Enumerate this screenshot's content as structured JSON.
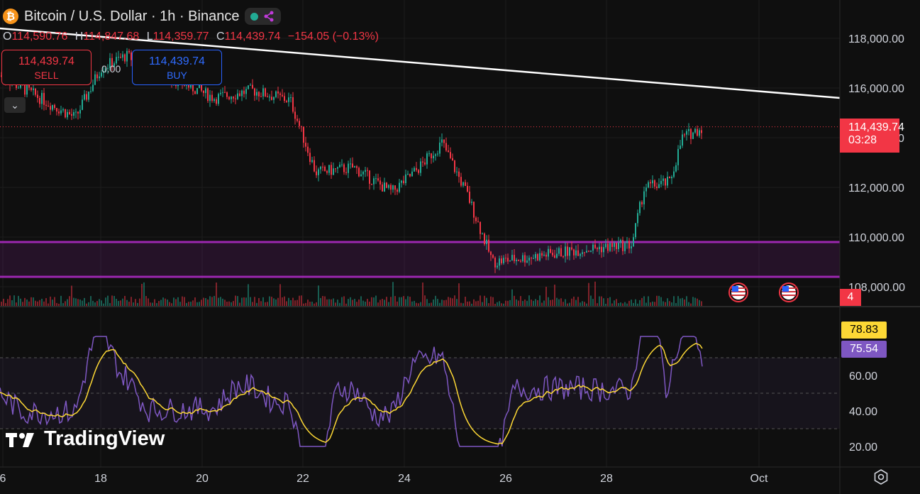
{
  "header": {
    "coin_icon": "bitcoin-icon",
    "coin_symbol": "₿",
    "title": "Bitcoin / U.S. Dollar · 1h · Binance",
    "status_color": "#22ab94"
  },
  "ohlc": {
    "o_label": "O",
    "o": "114,590.76",
    "h_label": "H",
    "h": "114,847.68",
    "l_label": "L",
    "l": "114,359.77",
    "c_label": "C",
    "c": "114,439.74",
    "change": "−154.05 (−0.13%)"
  },
  "trade": {
    "sell_price": "114,439.74",
    "sell_label": "SELL",
    "buy_price": "114,439.74",
    "buy_label": "BUY",
    "spread": "0.00"
  },
  "collapse_icon": "chevron-down-icon",
  "price_axis": [
    "118,000.00",
    "116,000.00",
    "114,000.00",
    "112,000.00",
    "110,000.00",
    "108,000.00"
  ],
  "last_price": {
    "price": "114,439.74",
    "countdown": "03:28"
  },
  "volume_tag": "4",
  "rsi_axis": [
    "60.00",
    "40.00",
    "20.00"
  ],
  "rsi_tags": {
    "rsi_ma": "78.83",
    "rsi": "75.54"
  },
  "time_axis": [
    "6",
    "18",
    "20",
    "22",
    "24",
    "26",
    "28",
    "Oct"
  ],
  "events": [
    "us-flag-icon",
    "us-flag-icon"
  ],
  "brand": "TradingView",
  "settings_icon": "gear-icon",
  "colors": {
    "up": "#22ab94",
    "down": "#f23645",
    "zone": "#9c27b0",
    "rsi": "#7e57c2",
    "rsi_ma": "#fdd835"
  },
  "chart_data": {
    "type": "candlestick",
    "interval": "1h",
    "x_ticks": [
      "6",
      "18",
      "20",
      "22",
      "24",
      "26",
      "28",
      "Oct"
    ],
    "ylim": [
      107500,
      118500
    ],
    "close_path": [
      {
        "t": "Sep 17 12:00",
        "close": 114800
      },
      {
        "t": "Sep 18 00:00",
        "close": 116800
      },
      {
        "t": "Sep 18 12:00",
        "close": 117300
      },
      {
        "t": "Sep 19 12:00",
        "close": 116300
      },
      {
        "t": "Sep 20 06:00",
        "close": 115600
      },
      {
        "t": "Sep 21 00:00",
        "close": 115900
      },
      {
        "t": "Sep 21 18:00",
        "close": 115500
      },
      {
        "t": "Sep 22 06:00",
        "close": 112600
      },
      {
        "t": "Sep 23 00:00",
        "close": 112800
      },
      {
        "t": "Sep 23 18:00",
        "close": 111800
      },
      {
        "t": "Sep 24 06:00",
        "close": 112700
      },
      {
        "t": "Sep 24 18:00",
        "close": 113800
      },
      {
        "t": "Sep 25 06:00",
        "close": 111700
      },
      {
        "t": "Sep 25 18:00",
        "close": 109000
      },
      {
        "t": "Sep 26 12:00",
        "close": 109200
      },
      {
        "t": "Sep 27 12:00",
        "close": 109500
      },
      {
        "t": "Sep 28 12:00",
        "close": 109700
      },
      {
        "t": "Sep 28 18:00",
        "close": 112000
      },
      {
        "t": "Sep 29 06:00",
        "close": 112200
      },
      {
        "t": "Sep 29 12:00",
        "close": 114000
      },
      {
        "t": "Sep 29 22:00",
        "close": 114440
      }
    ],
    "trendline": [
      {
        "price": 118400
      },
      {
        "price": 115600
      }
    ],
    "support_zone": [
      108400,
      109800
    ],
    "last": 114439.74
  }
}
